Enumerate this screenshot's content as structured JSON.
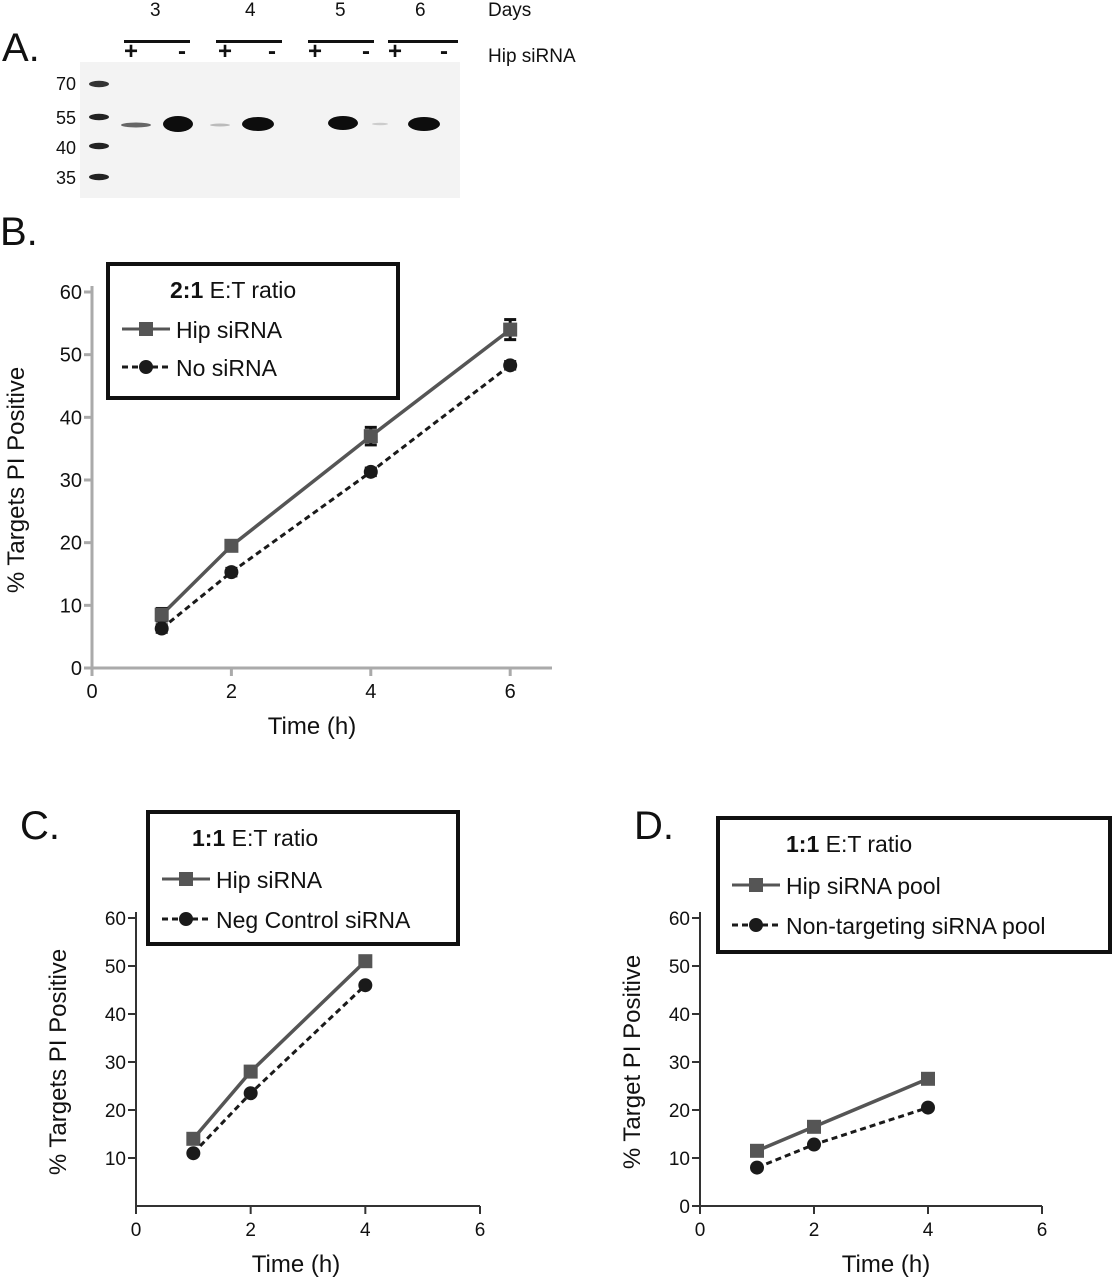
{
  "panel_a": {
    "label": "A.",
    "days_header": "Days",
    "sirna_header": "Hip siRNA",
    "days": [
      "3",
      "4",
      "5",
      "6"
    ],
    "signs": [
      "+",
      "-",
      "+",
      "-",
      "+",
      "-",
      "+",
      "-"
    ],
    "mw_markers": [
      "70",
      "55",
      "40",
      "35"
    ]
  },
  "chart_data": [
    {
      "panel": "B.",
      "type": "line",
      "legend_title": "2:1 E:T ratio",
      "xlabel": "Time (h)",
      "ylabel": "% Targets PI Positive",
      "xlim": [
        0,
        6.6
      ],
      "ylim": [
        0,
        60
      ],
      "x_ticks": [
        "0",
        "2",
        "4",
        "6"
      ],
      "y_ticks": [
        "0",
        "10",
        "20",
        "30",
        "40",
        "50",
        "60"
      ],
      "x": [
        1,
        2,
        4,
        6
      ],
      "series": [
        {
          "name": "Hip siRNA",
          "values": [
            8.5,
            19.5,
            37,
            54
          ],
          "error": [
            1,
            0.7,
            1.4,
            1.6
          ],
          "color": "#555555",
          "marker": "square",
          "dashed": false
        },
        {
          "name": "No siRNA",
          "values": [
            6.3,
            15.3,
            31.3,
            48.3
          ],
          "error": [
            0.6,
            0.6,
            0.6,
            0.6
          ],
          "color": "#1a1a1a",
          "marker": "circle",
          "dashed": true
        }
      ]
    },
    {
      "panel": "C.",
      "type": "line",
      "legend_title": "1:1 E:T ratio",
      "xlabel": "Time (h)",
      "ylabel": "% Targets PI Positive",
      "xlim": [
        0,
        6
      ],
      "ylim": [
        0,
        60
      ],
      "x_ticks": [
        "0",
        "2",
        "4",
        "6"
      ],
      "y_ticks": [
        "10",
        "20",
        "30",
        "40",
        "50",
        "60"
      ],
      "x": [
        1,
        2,
        4
      ],
      "series": [
        {
          "name": "Hip siRNA",
          "values": [
            14,
            28,
            51
          ],
          "color": "#555555",
          "marker": "square",
          "dashed": false
        },
        {
          "name": "Neg Control siRNA",
          "values": [
            11,
            23.5,
            46
          ],
          "color": "#1a1a1a",
          "marker": "circle",
          "dashed": true
        }
      ]
    },
    {
      "panel": "D.",
      "type": "line",
      "legend_title": "1:1 E:T ratio",
      "xlabel": "Time (h)",
      "ylabel": "% Target PI Positive",
      "xlim": [
        0,
        6
      ],
      "ylim": [
        0,
        60
      ],
      "x_ticks": [
        "0",
        "2",
        "4",
        "6"
      ],
      "y_ticks": [
        "0",
        "10",
        "20",
        "30",
        "40",
        "50",
        "60"
      ],
      "x": [
        1,
        2,
        4
      ],
      "series": [
        {
          "name": "Hip siRNA pool",
          "values": [
            11.5,
            16.5,
            26.5
          ],
          "color": "#555555",
          "marker": "square",
          "dashed": false
        },
        {
          "name": "Non-targeting siRNA pool",
          "values": [
            8,
            12.8,
            20.5
          ],
          "color": "#1a1a1a",
          "marker": "circle",
          "dashed": true
        }
      ]
    }
  ]
}
